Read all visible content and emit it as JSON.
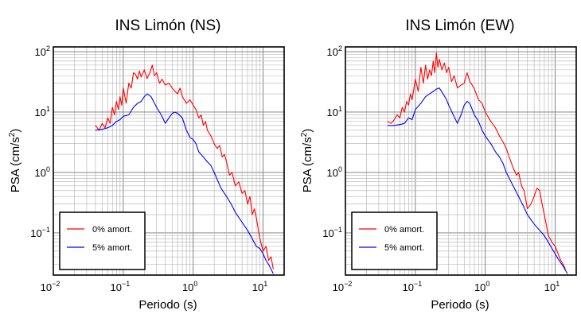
{
  "chart_data": [
    {
      "type": "line",
      "title": "INS Limón (NS)",
      "xlabel": "Periodo (s)",
      "ylabel_base": "PSA (cm/s",
      "ylabel_sup": "2",
      "ylabel_tail": ")",
      "x_scale": "log",
      "y_scale": "log",
      "xlim": [
        0.01,
        20
      ],
      "ylim": [
        0.02,
        120
      ],
      "x_ticks": [
        {
          "base": "10",
          "exp": "−2",
          "value": 0.01
        },
        {
          "base": "10",
          "exp": "−1",
          "value": 0.1
        },
        {
          "base": "10",
          "exp": "0",
          "value": 1
        },
        {
          "base": "10",
          "exp": "1",
          "value": 10
        }
      ],
      "y_ticks": [
        {
          "base": "10",
          "exp": "−1",
          "value": 0.1
        },
        {
          "base": "10",
          "exp": "0",
          "value": 1
        },
        {
          "base": "10",
          "exp": "1",
          "value": 10
        },
        {
          "base": "10",
          "exp": "2",
          "value": 100
        }
      ],
      "grid": true,
      "legend": "bottom-left",
      "series": [
        {
          "name": "0% amort.",
          "color": "#ff0000",
          "x": [
            0.04,
            0.045,
            0.05,
            0.055,
            0.06,
            0.065,
            0.07,
            0.075,
            0.08,
            0.085,
            0.09,
            0.095,
            0.1,
            0.11,
            0.12,
            0.13,
            0.14,
            0.15,
            0.16,
            0.17,
            0.18,
            0.2,
            0.22,
            0.24,
            0.26,
            0.28,
            0.3,
            0.33,
            0.36,
            0.4,
            0.45,
            0.5,
            0.55,
            0.6,
            0.65,
            0.7,
            0.8,
            0.9,
            1.0,
            1.1,
            1.2,
            1.3,
            1.4,
            1.5,
            1.6,
            1.8,
            2.0,
            2.2,
            2.4,
            2.6,
            2.8,
            3.0,
            3.3,
            3.6,
            4.0,
            4.5,
            5.0,
            5.5,
            6.0,
            6.5,
            7.0,
            7.5,
            8.0,
            9.0,
            10.0,
            11.0,
            12.0,
            13.0,
            14.0
          ],
          "y": [
            6.0,
            5.0,
            6.5,
            5.5,
            8.0,
            6.5,
            12.0,
            9.0,
            15.0,
            11.0,
            18.0,
            13.0,
            25.0,
            14.0,
            30.0,
            25.0,
            45.0,
            42.0,
            35.0,
            48.0,
            38.0,
            50.0,
            36.0,
            45.0,
            60.0,
            40.0,
            45.0,
            30.0,
            35.0,
            28.0,
            30.0,
            25.0,
            22.0,
            20.0,
            25.0,
            18.0,
            14.0,
            16.0,
            13.0,
            11.0,
            8.0,
            9.0,
            6.0,
            7.0,
            5.0,
            4.0,
            3.0,
            2.5,
            2.8,
            1.8,
            2.0,
            1.5,
            0.9,
            1.0,
            0.6,
            0.7,
            0.45,
            0.5,
            0.3,
            0.4,
            0.2,
            0.25,
            0.18,
            0.08,
            0.05,
            0.06,
            0.035,
            0.04,
            0.025
          ]
        },
        {
          "name": "5% amort.",
          "color": "#0000ff",
          "x": [
            0.04,
            0.05,
            0.06,
            0.07,
            0.08,
            0.09,
            0.1,
            0.12,
            0.14,
            0.16,
            0.18,
            0.2,
            0.22,
            0.25,
            0.28,
            0.3,
            0.35,
            0.4,
            0.45,
            0.5,
            0.55,
            0.6,
            0.7,
            0.8,
            0.9,
            1.0,
            1.1,
            1.2,
            1.4,
            1.6,
            1.8,
            2.0,
            2.5,
            3.0,
            3.5,
            4.0,
            5.0,
            6.0,
            7.0,
            8.0,
            9.0,
            10.0,
            11.0,
            12.0,
            13.0,
            14.0
          ],
          "y": [
            5.0,
            5.2,
            5.5,
            6.0,
            7.0,
            7.5,
            8.5,
            9.0,
            12.0,
            14.0,
            15.0,
            18.0,
            20.0,
            18.0,
            14.0,
            12.0,
            9.0,
            6.5,
            8.0,
            9.5,
            10.0,
            9.5,
            8.0,
            5.0,
            3.8,
            3.5,
            3.0,
            2.2,
            1.8,
            1.5,
            1.3,
            1.0,
            0.55,
            0.4,
            0.3,
            0.22,
            0.15,
            0.11,
            0.08,
            0.06,
            0.055,
            0.045,
            0.035,
            0.03,
            0.025,
            0.021
          ]
        }
      ]
    },
    {
      "type": "line",
      "title": "INS Limón (EW)",
      "xlabel": "Periodo (s)",
      "ylabel_base": "PSA (cm/s",
      "ylabel_sup": "2",
      "ylabel_tail": ")",
      "x_scale": "log",
      "y_scale": "log",
      "xlim": [
        0.01,
        20
      ],
      "ylim": [
        0.02,
        120
      ],
      "x_ticks": [
        {
          "base": "10",
          "exp": "−2",
          "value": 0.01
        },
        {
          "base": "10",
          "exp": "−1",
          "value": 0.1
        },
        {
          "base": "10",
          "exp": "0",
          "value": 1
        },
        {
          "base": "10",
          "exp": "1",
          "value": 10
        }
      ],
      "y_ticks": [
        {
          "base": "10",
          "exp": "−1",
          "value": 0.1
        },
        {
          "base": "10",
          "exp": "0",
          "value": 1
        },
        {
          "base": "10",
          "exp": "1",
          "value": 10
        },
        {
          "base": "10",
          "exp": "2",
          "value": 100
        }
      ],
      "grid": true,
      "legend": "bottom-left",
      "series": [
        {
          "name": "0% amort.",
          "color": "#ff0000",
          "x": [
            0.04,
            0.045,
            0.05,
            0.055,
            0.06,
            0.065,
            0.07,
            0.075,
            0.08,
            0.085,
            0.09,
            0.1,
            0.11,
            0.12,
            0.13,
            0.14,
            0.15,
            0.16,
            0.17,
            0.18,
            0.19,
            0.2,
            0.21,
            0.22,
            0.24,
            0.26,
            0.28,
            0.3,
            0.33,
            0.36,
            0.4,
            0.45,
            0.5,
            0.55,
            0.6,
            0.65,
            0.7,
            0.8,
            0.9,
            1.0,
            1.2,
            1.4,
            1.6,
            1.8,
            2.0,
            2.2,
            2.5,
            2.8,
            3.0,
            3.3,
            3.6,
            4.0,
            4.5,
            5.0,
            5.5,
            6.0,
            6.5,
            7.0,
            8.0,
            9.0,
            10.0,
            11.0,
            12.0,
            13.0,
            14.0
          ],
          "y": [
            7.0,
            6.5,
            7.5,
            9.0,
            8.0,
            12.0,
            10.0,
            15.0,
            13.0,
            20.0,
            16.0,
            35.0,
            22.0,
            55.0,
            30.0,
            60.0,
            35.0,
            50.0,
            40.0,
            70.0,
            45.0,
            95.0,
            55.0,
            75.0,
            50.0,
            65.0,
            45.0,
            55.0,
            32.0,
            40.0,
            25.0,
            28.0,
            30.0,
            45.0,
            32.0,
            28.0,
            24.0,
            16.0,
            14.0,
            10.0,
            7.0,
            5.5,
            4.0,
            3.2,
            2.5,
            1.8,
            1.2,
            0.9,
            1.0,
            0.6,
            0.5,
            0.25,
            0.3,
            0.4,
            0.55,
            0.5,
            0.3,
            0.2,
            0.09,
            0.07,
            0.06,
            0.045,
            0.035,
            0.03,
            0.025
          ]
        },
        {
          "name": "5% amort.",
          "color": "#0000ff",
          "x": [
            0.04,
            0.05,
            0.06,
            0.07,
            0.08,
            0.09,
            0.1,
            0.12,
            0.14,
            0.16,
            0.18,
            0.2,
            0.22,
            0.25,
            0.28,
            0.3,
            0.35,
            0.4,
            0.45,
            0.5,
            0.55,
            0.6,
            0.7,
            0.8,
            0.9,
            1.0,
            1.2,
            1.4,
            1.6,
            1.8,
            2.0,
            2.5,
            3.0,
            3.5,
            4.0,
            5.0,
            6.0,
            7.0,
            8.0,
            9.0,
            10.0,
            11.0,
            12.0,
            13.0,
            14.0,
            15.0
          ],
          "y": [
            6.0,
            6.0,
            6.2,
            6.5,
            8.0,
            7.5,
            11.0,
            14.0,
            18.0,
            20.0,
            22.0,
            24.0,
            25.0,
            20.0,
            16.0,
            13.0,
            9.0,
            6.5,
            9.0,
            13.0,
            15.0,
            14.0,
            9.0,
            7.0,
            5.0,
            4.0,
            3.0,
            2.2,
            1.8,
            1.4,
            1.0,
            0.6,
            0.4,
            0.28,
            0.2,
            0.14,
            0.11,
            0.09,
            0.07,
            0.055,
            0.045,
            0.037,
            0.032,
            0.028,
            0.024,
            0.021
          ]
        }
      ]
    }
  ]
}
